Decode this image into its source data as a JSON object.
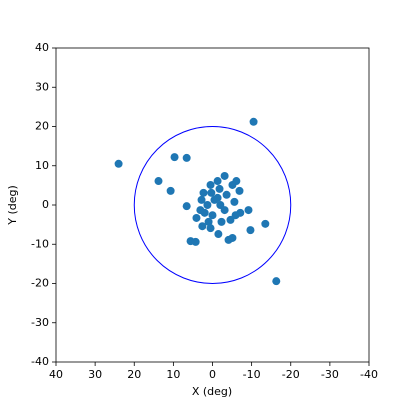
{
  "chart_data": {
    "type": "scatter",
    "x_label": "X (deg)",
    "y_label": "Y (deg)",
    "xlim": [
      40,
      -40
    ],
    "ylim": [
      -40,
      40
    ],
    "xticks": [
      40,
      30,
      20,
      10,
      0,
      -10,
      -20,
      -30,
      -40
    ],
    "yticks": [
      -40,
      -30,
      -20,
      -10,
      0,
      10,
      20,
      30,
      40
    ],
    "circle_radius": 20,
    "circle_color": "#0000ff",
    "series": [
      {
        "color": "#1f77b4",
        "x": [
          -10.5,
          24,
          9.7,
          6.6,
          13.8,
          10.7,
          6.6,
          -16.3,
          5.6,
          4.3,
          -13.5,
          -9.7,
          -9.2,
          -7.1,
          -5.6,
          -6.9,
          -6.1,
          -5.1,
          -3.1,
          -1.3,
          0.5,
          2.3,
          2.8,
          3.1,
          2.6,
          -1.5,
          -4.1,
          -5.1,
          -2.3,
          0,
          1,
          -0.5,
          -2,
          -3.1,
          -3.6,
          -5.9,
          1.3,
          2,
          -1.3,
          0.3,
          -1.8,
          4.1,
          0.5,
          -4.6
        ],
        "values": [
          21.2,
          10.5,
          12.2,
          12,
          6.1,
          3.6,
          -0.3,
          -19.4,
          -9.2,
          -9.4,
          -4.8,
          -6.4,
          -1.3,
          -2,
          0.8,
          3.6,
          6.1,
          5.1,
          7.4,
          6.1,
          5.1,
          3.1,
          1.3,
          -1.3,
          -5.4,
          -7.4,
          -8.9,
          -8.4,
          -4.3,
          -2.6,
          -4.3,
          1.3,
          0,
          -1.3,
          2.6,
          -2.6,
          0,
          -2,
          1.8,
          3.1,
          4.1,
          -3.3,
          -5.9,
          -3.8
        ]
      }
    ]
  }
}
